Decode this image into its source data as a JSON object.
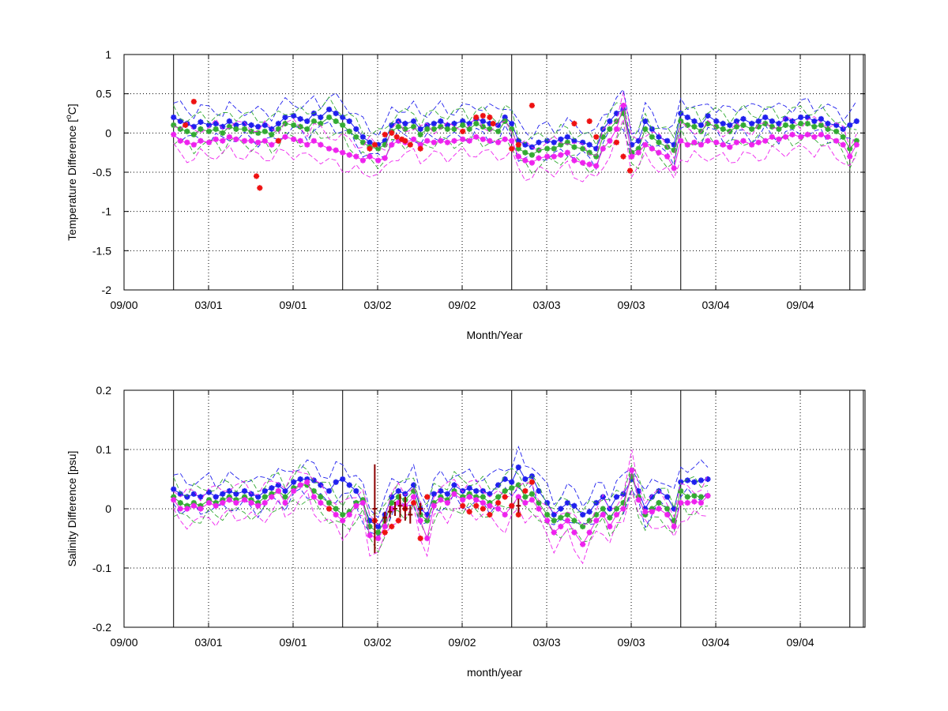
{
  "colors": {
    "blue": "#1f1fee",
    "green": "#33aa33",
    "magenta": "#ee22ee",
    "red": "#ee1111",
    "darkred": "#8b0000",
    "black": "#000000"
  },
  "chart_data": [
    {
      "type": "line",
      "xlabel": "Month/Year",
      "ylabel": "Temperature Difference [",
      "ylabel_sup": "o",
      "ylabel_tail": "C]",
      "xlim": [
        2000.667,
        2005.05
      ],
      "ylim": [
        -2,
        1
      ],
      "x_ticks": [
        2000.667,
        2001.167,
        2001.667,
        2002.167,
        2002.667,
        2003.167,
        2003.667,
        2004.167,
        2004.667
      ],
      "x_tick_labels": [
        "09/00",
        "03/01",
        "09/01",
        "03/02",
        "09/02",
        "03/03",
        "09/03",
        "03/04",
        "09/04"
      ],
      "y_ticks": [
        -2,
        -1.5,
        -1,
        -0.5,
        0,
        0.5,
        1
      ],
      "y_tick_labels": [
        "-2",
        "-1.5",
        "-1",
        "-0.5",
        "0",
        "0.5",
        "1"
      ],
      "grid": true,
      "vertical_lines_x": [
        2000.96,
        2001.96,
        2002.96,
        2003.96,
        2004.96,
        2005.04
      ],
      "x": [
        2000.96,
        2001.0,
        2001.04,
        2001.08,
        2001.12,
        2001.17,
        2001.21,
        2001.25,
        2001.29,
        2001.33,
        2001.38,
        2001.42,
        2001.46,
        2001.5,
        2001.54,
        2001.58,
        2001.62,
        2001.67,
        2001.71,
        2001.75,
        2001.79,
        2001.83,
        2001.88,
        2001.92,
        2001.96,
        2002.0,
        2002.04,
        2002.08,
        2002.12,
        2002.17,
        2002.21,
        2002.25,
        2002.29,
        2002.33,
        2002.38,
        2002.42,
        2002.46,
        2002.5,
        2002.54,
        2002.58,
        2002.62,
        2002.67,
        2002.71,
        2002.75,
        2002.79,
        2002.83,
        2002.88,
        2002.92,
        2002.96,
        2003.0,
        2003.04,
        2003.08,
        2003.12,
        2003.17,
        2003.21,
        2003.25,
        2003.29,
        2003.33,
        2003.38,
        2003.42,
        2003.46,
        2003.5,
        2003.54,
        2003.58,
        2003.62,
        2003.67,
        2003.71,
        2003.75,
        2003.79,
        2003.83,
        2003.88,
        2003.92,
        2003.96,
        2004.0,
        2004.04,
        2004.08,
        2004.12,
        2004.17,
        2004.21,
        2004.25,
        2004.29,
        2004.33,
        2004.38,
        2004.42,
        2004.46,
        2004.5,
        2004.54,
        2004.58,
        2004.62,
        2004.67,
        2004.71,
        2004.75,
        2004.79,
        2004.83,
        2004.88,
        2004.92,
        2004.96,
        2005.0
      ],
      "series": [
        {
          "color": "blue",
          "marker": "*",
          "values": [
            0.2,
            0.15,
            0.12,
            0.08,
            0.14,
            0.1,
            0.12,
            0.08,
            0.15,
            0.1,
            0.12,
            0.1,
            0.08,
            0.1,
            0.05,
            0.12,
            0.2,
            0.22,
            0.18,
            0.15,
            0.25,
            0.2,
            0.3,
            0.25,
            0.2,
            0.15,
            0.05,
            -0.05,
            -0.12,
            -0.15,
            -0.1,
            0.1,
            0.15,
            0.12,
            0.15,
            0.05,
            0.1,
            0.12,
            0.15,
            0.1,
            0.12,
            0.15,
            0.12,
            0.18,
            0.15,
            0.12,
            0.1,
            0.2,
            0.12,
            -0.1,
            -0.15,
            -0.18,
            -0.12,
            -0.1,
            -0.12,
            -0.08,
            -0.05,
            -0.1,
            -0.12,
            -0.15,
            -0.2,
            0.05,
            0.15,
            0.25,
            0.3,
            -0.15,
            -0.1,
            0.15,
            0.05,
            -0.05,
            -0.1,
            -0.15,
            0.25,
            0.2,
            0.15,
            0.1,
            0.22,
            0.15,
            0.12,
            0.1,
            0.15,
            0.18,
            0.12,
            0.15,
            0.2,
            0.15,
            0.12,
            0.18,
            0.15,
            0.2,
            0.2,
            0.15,
            0.18,
            0.12,
            0.1,
            0.05,
            0.1,
            0.15
          ]
        },
        {
          "color": "green",
          "marker": "*",
          "values": [
            0.1,
            0.05,
            0.02,
            -0.02,
            0.05,
            0.02,
            0.05,
            0.0,
            0.08,
            0.05,
            0.05,
            0.02,
            0.0,
            0.02,
            -0.02,
            0.05,
            0.12,
            0.1,
            0.08,
            0.05,
            0.15,
            0.12,
            0.2,
            0.15,
            0.1,
            0.02,
            -0.05,
            -0.12,
            -0.18,
            -0.2,
            -0.15,
            0.02,
            0.08,
            0.05,
            0.08,
            -0.02,
            0.05,
            0.05,
            0.08,
            0.05,
            0.05,
            0.1,
            0.05,
            0.12,
            0.08,
            0.05,
            0.02,
            0.15,
            0.05,
            -0.2,
            -0.25,
            -0.28,
            -0.22,
            -0.2,
            -0.2,
            -0.15,
            -0.12,
            -0.18,
            -0.2,
            -0.25,
            -0.3,
            -0.05,
            0.05,
            0.15,
            0.25,
            -0.25,
            -0.2,
            0.05,
            -0.05,
            -0.12,
            -0.18,
            -0.22,
            0.15,
            0.1,
            0.08,
            0.02,
            0.12,
            0.08,
            0.05,
            0.02,
            0.08,
            0.1,
            0.05,
            0.08,
            0.12,
            0.08,
            0.05,
            0.1,
            0.08,
            0.12,
            0.12,
            0.08,
            0.1,
            0.05,
            0.02,
            -0.05,
            -0.2,
            -0.1
          ]
        },
        {
          "color": "magenta",
          "marker": "*",
          "values": [
            -0.02,
            -0.1,
            -0.12,
            -0.15,
            -0.1,
            -0.12,
            -0.08,
            -0.1,
            -0.05,
            -0.08,
            -0.1,
            -0.1,
            -0.12,
            -0.1,
            -0.15,
            -0.1,
            -0.05,
            -0.08,
            -0.1,
            -0.15,
            -0.1,
            -0.15,
            -0.2,
            -0.22,
            -0.25,
            -0.28,
            -0.3,
            -0.35,
            -0.3,
            -0.35,
            -0.32,
            -0.15,
            -0.1,
            -0.12,
            -0.08,
            -0.15,
            -0.1,
            -0.12,
            -0.1,
            -0.12,
            -0.1,
            -0.08,
            -0.1,
            -0.05,
            -0.08,
            -0.1,
            -0.12,
            -0.08,
            -0.1,
            -0.3,
            -0.35,
            -0.38,
            -0.32,
            -0.3,
            -0.3,
            -0.28,
            -0.25,
            -0.35,
            -0.38,
            -0.4,
            -0.42,
            -0.2,
            -0.1,
            0.05,
            0.35,
            -0.3,
            -0.25,
            -0.15,
            -0.2,
            -0.25,
            -0.3,
            -0.45,
            -0.1,
            -0.15,
            -0.12,
            -0.15,
            -0.1,
            -0.12,
            -0.15,
            -0.18,
            -0.12,
            -0.1,
            -0.15,
            -0.12,
            -0.1,
            -0.05,
            -0.08,
            -0.05,
            -0.02,
            -0.05,
            -0.02,
            -0.05,
            -0.02,
            -0.05,
            -0.1,
            -0.15,
            -0.3,
            -0.15
          ]
        },
        {
          "color": "red",
          "marker": "*",
          "line": false,
          "x": [
            2001.03,
            2001.08,
            2001.45,
            2001.47,
            2001.58,
            2002.12,
            2002.15,
            2002.21,
            2002.25,
            2002.28,
            2002.31,
            2002.33,
            2002.36,
            2002.42,
            2002.67,
            2002.75,
            2002.79,
            2002.83,
            2002.85,
            2002.96,
            2003.0,
            2003.08,
            2003.33,
            2003.42,
            2003.46,
            2003.58,
            2003.62,
            2003.66
          ],
          "values": [
            0.1,
            0.4,
            -0.55,
            -0.7,
            -0.1,
            -0.2,
            -0.15,
            -0.02,
            0.0,
            -0.05,
            -0.08,
            -0.1,
            -0.15,
            -0.2,
            0.02,
            0.2,
            0.22,
            0.2,
            0.12,
            -0.2,
            -0.15,
            0.35,
            0.12,
            0.15,
            -0.05,
            -0.12,
            -0.3,
            -0.48
          ]
        }
      ]
    },
    {
      "type": "line",
      "xlabel": "month/year",
      "ylabel": "Salinity Difference [psu]",
      "xlim": [
        2000.667,
        2005.05
      ],
      "ylim": [
        -0.2,
        0.2
      ],
      "x_ticks": [
        2000.667,
        2001.167,
        2001.667,
        2002.167,
        2002.667,
        2003.167,
        2003.667,
        2004.167,
        2004.667
      ],
      "x_tick_labels": [
        "09/00",
        "03/01",
        "09/01",
        "03/02",
        "09/02",
        "03/03",
        "09/03",
        "03/04",
        "09/04"
      ],
      "y_ticks": [
        -0.2,
        -0.1,
        0,
        0.1,
        0.2
      ],
      "y_tick_labels": [
        "-0.2",
        "-0.1",
        "0",
        "0.1",
        "0.2"
      ],
      "grid": true,
      "vertical_lines_x": [
        2000.96,
        2001.96,
        2002.96,
        2003.96,
        2004.96,
        2005.04
      ],
      "x": [
        2000.96,
        2001.0,
        2001.04,
        2001.08,
        2001.12,
        2001.17,
        2001.21,
        2001.25,
        2001.29,
        2001.33,
        2001.38,
        2001.42,
        2001.46,
        2001.5,
        2001.54,
        2001.58,
        2001.62,
        2001.67,
        2001.71,
        2001.75,
        2001.79,
        2001.83,
        2001.88,
        2001.92,
        2001.96,
        2002.0,
        2002.04,
        2002.08,
        2002.12,
        2002.17,
        2002.21,
        2002.25,
        2002.29,
        2002.33,
        2002.38,
        2002.42,
        2002.46,
        2002.5,
        2002.54,
        2002.58,
        2002.62,
        2002.67,
        2002.71,
        2002.75,
        2002.79,
        2002.83,
        2002.88,
        2002.92,
        2002.96,
        2003.0,
        2003.04,
        2003.08,
        2003.12,
        2003.17,
        2003.21,
        2003.25,
        2003.29,
        2003.33,
        2003.38,
        2003.42,
        2003.46,
        2003.5,
        2003.54,
        2003.58,
        2003.62,
        2003.67,
        2003.71,
        2003.75,
        2003.79,
        2003.83,
        2003.88,
        2003.92,
        2003.96,
        2004.0,
        2004.04,
        2004.08,
        2004.12
      ],
      "series": [
        {
          "color": "blue",
          "marker": "*",
          "values": [
            0.033,
            0.025,
            0.02,
            0.025,
            0.02,
            0.028,
            0.02,
            0.025,
            0.03,
            0.025,
            0.03,
            0.025,
            0.02,
            0.03,
            0.035,
            0.04,
            0.03,
            0.045,
            0.05,
            0.05,
            0.048,
            0.04,
            0.03,
            0.045,
            0.05,
            0.04,
            0.03,
            0.01,
            -0.02,
            -0.03,
            -0.01,
            0.02,
            0.03,
            0.025,
            0.04,
            0.0,
            -0.01,
            0.025,
            0.03,
            0.025,
            0.04,
            0.03,
            0.035,
            0.03,
            0.03,
            0.025,
            0.04,
            0.05,
            0.045,
            0.07,
            0.05,
            0.055,
            0.03,
            0.01,
            -0.01,
            0.0,
            0.01,
            0.005,
            -0.01,
            -0.005,
            0.01,
            0.02,
            0.0,
            0.02,
            0.025,
            0.05,
            0.03,
            0.0,
            0.02,
            0.03,
            0.02,
            0.0,
            0.045,
            0.048,
            0.045,
            0.048,
            0.05
          ]
        },
        {
          "color": "green",
          "marker": "*",
          "values": [
            0.02,
            0.01,
            0.005,
            0.01,
            0.005,
            0.015,
            0.01,
            0.015,
            0.02,
            0.015,
            0.02,
            0.015,
            0.01,
            0.02,
            0.025,
            0.03,
            0.02,
            0.035,
            0.04,
            0.04,
            0.03,
            0.02,
            0.01,
            0.0,
            -0.01,
            -0.005,
            0.01,
            0.015,
            -0.03,
            -0.04,
            -0.02,
            0.01,
            0.02,
            0.015,
            0.03,
            -0.01,
            -0.02,
            0.01,
            0.02,
            0.015,
            0.03,
            0.02,
            0.025,
            0.02,
            0.02,
            0.01,
            0.02,
            0.03,
            0.035,
            0.04,
            0.02,
            0.025,
            0.01,
            -0.01,
            -0.02,
            -0.015,
            -0.01,
            -0.02,
            -0.03,
            -0.02,
            -0.01,
            0.0,
            -0.015,
            0.0,
            0.01,
            0.055,
            0.02,
            -0.01,
            0.0,
            0.01,
            0.0,
            -0.02,
            0.03,
            0.02,
            0.022,
            0.02,
            0.022
          ]
        },
        {
          "color": "magenta",
          "marker": "*",
          "values": [
            0.015,
            0.0,
            0.0,
            0.005,
            0.0,
            0.01,
            0.005,
            0.01,
            0.015,
            0.01,
            0.015,
            0.01,
            0.005,
            0.01,
            0.02,
            0.03,
            0.01,
            0.03,
            0.04,
            0.045,
            0.02,
            0.01,
            0.0,
            -0.01,
            -0.02,
            -0.01,
            0.005,
            0.01,
            -0.045,
            -0.05,
            -0.03,
            0.0,
            0.01,
            0.005,
            0.02,
            -0.02,
            -0.05,
            0.005,
            0.015,
            0.01,
            0.025,
            0.015,
            0.02,
            0.015,
            0.01,
            0.005,
            0.0,
            -0.01,
            0.005,
            0.02,
            0.01,
            0.015,
            0.0,
            -0.02,
            -0.04,
            -0.03,
            -0.02,
            -0.04,
            -0.06,
            -0.04,
            -0.02,
            -0.01,
            -0.03,
            -0.01,
            0.0,
            0.065,
            0.015,
            -0.005,
            -0.005,
            0.0,
            -0.01,
            -0.03,
            0.01,
            0.01,
            0.012,
            0.01,
            0.022
          ]
        },
        {
          "color": "red",
          "marker": "*",
          "line": false,
          "x": [
            2001.88,
            2002.15,
            2002.21,
            2002.25,
            2002.29,
            2002.33,
            2002.38,
            2002.42,
            2002.46,
            2002.67,
            2002.71,
            2002.75,
            2002.79,
            2002.83,
            2002.88,
            2002.92,
            2002.96,
            2003.0,
            2003.04,
            2003.08
          ],
          "values": [
            0.0,
            -0.02,
            -0.04,
            -0.03,
            -0.02,
            0.0,
            0.01,
            -0.05,
            0.02,
            0.005,
            -0.005,
            0.005,
            0.0,
            -0.01,
            0.01,
            0.02,
            0.005,
            -0.01,
            0.03,
            0.045
          ]
        },
        {
          "color": "darkred",
          "marker": "errorbar",
          "line": false,
          "x": [
            2002.15,
            2002.21,
            2002.24,
            2002.27,
            2002.3,
            2002.33,
            2002.36,
            2002.42,
            2003.0
          ],
          "values": [
            0.0,
            -0.015,
            -0.005,
            0.0,
            0.005,
            0.0,
            -0.01,
            0.0,
            0.005
          ],
          "errors": [
            0.075,
            0.01,
            0.01,
            0.012,
            0.02,
            0.02,
            0.015,
            0.01,
            0.012
          ]
        }
      ]
    }
  ]
}
